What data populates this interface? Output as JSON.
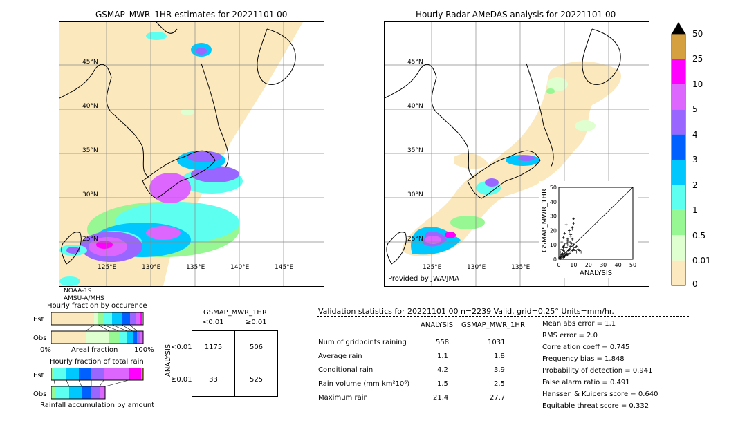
{
  "colors": {
    "land": "#fbe8bd",
    "ocean": "#ffffff",
    "grid": "#888888",
    "scale": [
      "#fde9c0",
      "#e0ffd0",
      "#97f792",
      "#5cfff0",
      "#00c8ff",
      "#0060ff",
      "#9966ff",
      "#dd66ff",
      "#ff00ff",
      "#d4a040",
      "#000000"
    ]
  },
  "map_left": {
    "title": "GSMAP_MWR_1HR estimates for 20221101 00",
    "lat_labels": [
      "45°N",
      "40°N",
      "35°N",
      "30°N",
      "25°N"
    ],
    "lon_labels": [
      "125°E",
      "130°E",
      "135°E",
      "140°E",
      "145°E"
    ],
    "footer_line1": "NOAA-19",
    "footer_line2": "AMSU-A/MHS"
  },
  "map_right": {
    "title": "Hourly Radar-AMeDAS analysis for 20221101 00",
    "lat_labels": [
      "45°N",
      "40°N",
      "35°N",
      "30°N",
      "25°N"
    ],
    "lon_labels": [
      "125°E",
      "130°E",
      "135°E"
    ],
    "credit": "Provided by JWA/JMA"
  },
  "scatter": {
    "ylabel": "GSMAP_MWR_1HR",
    "xlabel": "ANALYSIS",
    "ticks": [
      "0",
      "10",
      "20",
      "30",
      "40",
      "50"
    ]
  },
  "colorbar": {
    "labels": [
      "0",
      "0.01",
      "0.5",
      "1",
      "2",
      "3",
      "4",
      "5",
      "10",
      "25",
      "50"
    ]
  },
  "fraction_occurrence": {
    "title": "Hourly fraction by occurence",
    "row1": "Est",
    "row2": "Obs",
    "x0": "0%",
    "xmid": "Areal fraction",
    "x1": "100%"
  },
  "fraction_total": {
    "title": "Hourly fraction of total rain",
    "row1": "Est",
    "row2": "Obs",
    "footer": "Rainfall accumulation by amount"
  },
  "contingency": {
    "title": "GSMAP_MWR_1HR",
    "col1": "<0.01",
    "col2": "≥0.01",
    "side": "ANALYSIS",
    "row1": "<0.01",
    "row2": "≥0.01",
    "a": "1175",
    "b": "506",
    "c": "33",
    "d": "525"
  },
  "validation": {
    "header": "Validation statistics for 20221101 00  n=2239 Valid. grid=0.25° Units=mm/hr.",
    "col_analysis": "ANALYSIS",
    "col_est": "GSMAP_MWR_1HR",
    "rows": [
      {
        "label": "Num of gridpoints raining",
        "analysis": "558",
        "est": "1031"
      },
      {
        "label": "Average rain",
        "analysis": "1.1",
        "est": "1.8"
      },
      {
        "label": "Conditional rain",
        "analysis": "4.2",
        "est": "3.9"
      },
      {
        "label": "Rain volume (mm km²10⁶)",
        "analysis": "1.5",
        "est": "2.5"
      },
      {
        "label": "Maximum rain",
        "analysis": "21.4",
        "est": "27.7"
      }
    ],
    "scores": [
      "Mean abs error =    1.1",
      "RMS error =    2.0",
      "Correlation coeff =  0.745",
      "Frequency bias =  1.848",
      "Probability of detection =  0.941",
      "False alarm ratio =  0.491",
      "Hanssen & Kuipers score =  0.640",
      "Equitable threat score =  0.332"
    ]
  },
  "chart_data": [
    {
      "type": "scatter",
      "title": "",
      "xlabel": "ANALYSIS",
      "ylabel": "GSMAP_MWR_1HR",
      "xlim": [
        0,
        50
      ],
      "ylim": [
        0,
        50
      ],
      "x": [
        0.5,
        1,
        1.5,
        2,
        2.5,
        3,
        3,
        4,
        4.5,
        5,
        5.5,
        6,
        6.5,
        7,
        7.5,
        8,
        8.5,
        9,
        10,
        11,
        12,
        13,
        14,
        15,
        2,
        3,
        4,
        5,
        6,
        7,
        8,
        9,
        10,
        1,
        2,
        3,
        4,
        5,
        6,
        7,
        8,
        9,
        10,
        11,
        12,
        3,
        4,
        6,
        8,
        10,
        2,
        5,
        7,
        9,
        1,
        2,
        3,
        4,
        5,
        6,
        8
      ],
      "y": [
        1,
        2,
        3,
        1.5,
        4,
        2,
        6,
        5,
        3,
        8,
        4,
        10,
        6,
        7,
        12,
        9,
        11,
        14,
        10,
        8,
        9,
        7,
        6,
        5,
        12,
        15,
        18,
        11,
        13,
        20,
        16,
        22,
        25,
        0.5,
        1,
        1.5,
        2,
        2.5,
        3,
        4,
        5,
        6,
        7,
        6,
        5,
        9,
        10,
        14,
        17,
        28,
        3,
        24,
        19,
        21,
        5,
        7,
        8,
        2,
        3,
        12,
        9
      ]
    },
    {
      "type": "table",
      "title": "GSMAP_MWR_1HR",
      "columns": [
        "<0.01",
        "≥0.01"
      ],
      "rows": [
        "<0.01",
        "≥0.01"
      ],
      "values": [
        [
          1175,
          506
        ],
        [
          33,
          525
        ]
      ]
    }
  ]
}
